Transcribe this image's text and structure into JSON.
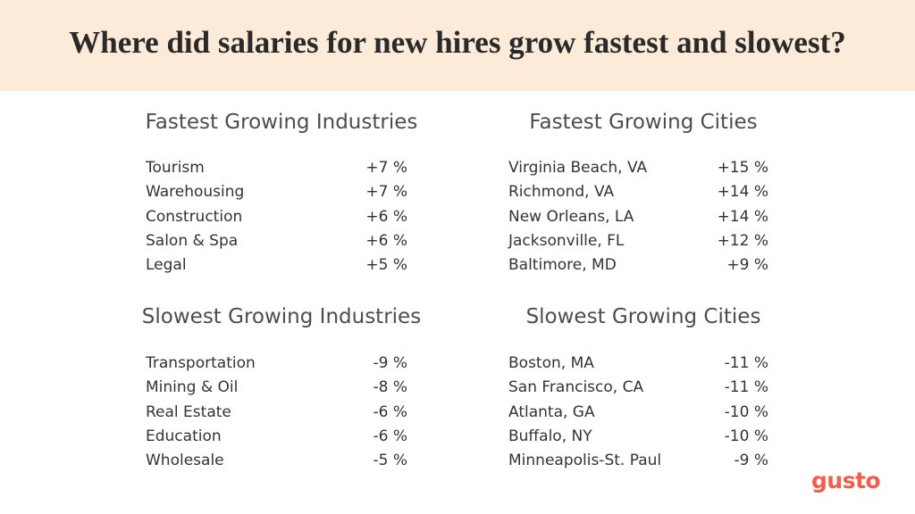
{
  "header": {
    "title": "Where did salaries for new hires grow fastest and slowest?"
  },
  "sections": [
    {
      "title": "Fastest Growing Industries",
      "rows": [
        [
          "Tourism",
          "+7 %"
        ],
        [
          "Warehousing",
          "+7 %"
        ],
        [
          "Construction",
          "+6 %"
        ],
        [
          "Salon & Spa",
          "+6 %"
        ],
        [
          "Legal",
          "+5 %"
        ]
      ]
    },
    {
      "title": "Fastest Growing Cities",
      "rows": [
        [
          "Virginia Beach, VA",
          "+15 %"
        ],
        [
          "Richmond, VA",
          "+14 %"
        ],
        [
          "New Orleans, LA",
          "+14 %"
        ],
        [
          "Jacksonville, FL",
          "+12 %"
        ],
        [
          "Baltimore, MD",
          "+9 %"
        ]
      ]
    },
    {
      "title": "Slowest Growing Industries",
      "rows": [
        [
          "Transportation",
          "-9 %"
        ],
        [
          "Mining & Oil",
          "-8 %"
        ],
        [
          "Real Estate",
          "-6 %"
        ],
        [
          "Education",
          "-6 %"
        ],
        [
          "Wholesale",
          "-5 %"
        ]
      ]
    },
    {
      "title": "Slowest Growing Cities",
      "rows": [
        [
          "Boston, MA",
          "-11 %"
        ],
        [
          "San Francisco, CA",
          "-11 %"
        ],
        [
          "Atlanta, GA",
          "-10 %"
        ],
        [
          "Buffalo, NY",
          "-10 %"
        ],
        [
          "Minneapolis-St. Paul",
          "-9 %"
        ]
      ]
    }
  ],
  "logo": "gusto"
}
